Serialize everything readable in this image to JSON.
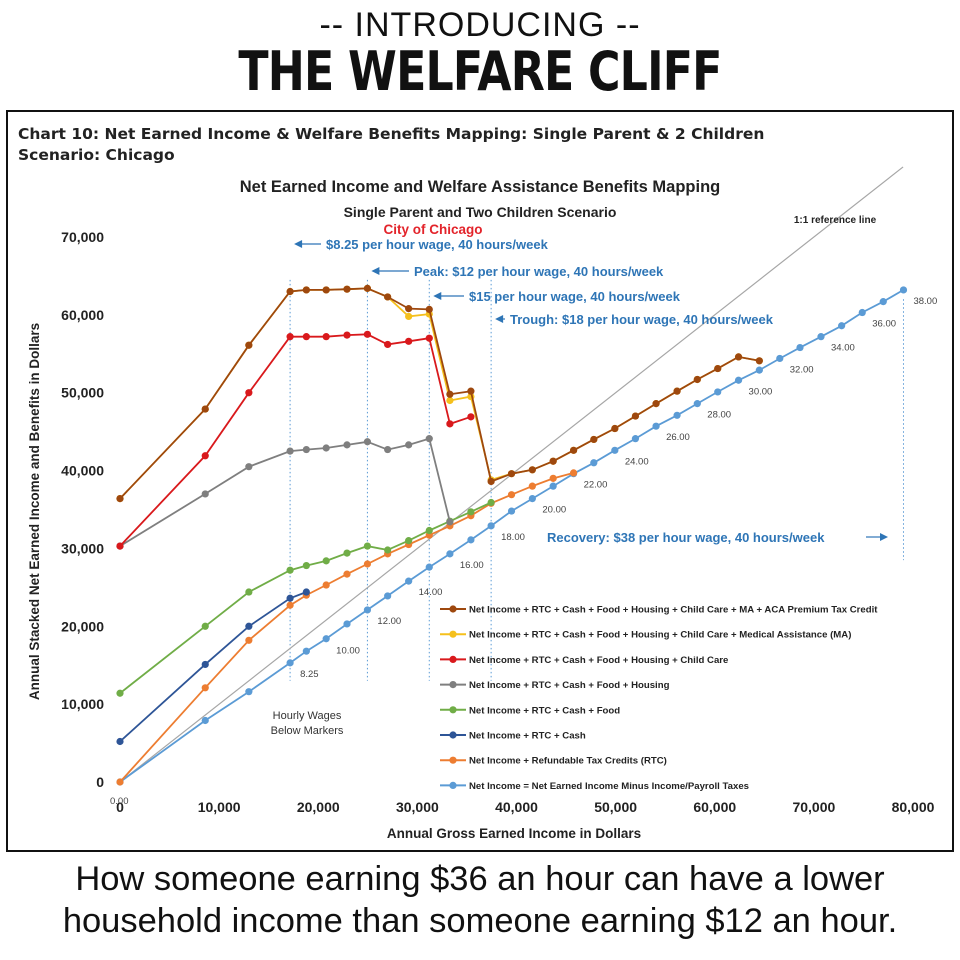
{
  "header": {
    "line1": "-- INTRODUCING --",
    "line2": "THE WELFARE CLIFF"
  },
  "box": {
    "title_line1": "Chart 10: Net Earned Income & Welfare Benefits Mapping:  Single Parent & 2 Children",
    "title_line2": "Scenario: Chicago"
  },
  "footer": {
    "line1": "How someone earning $36 an hour can have a lower",
    "line2": "household income than someone earning $12 an hour."
  },
  "chart_data": {
    "type": "line",
    "title": "Net Earned Income and Welfare Assistance Benefits Mapping",
    "subtitle": "Single Parent and Two Children Scenario",
    "subtitle2": "City of Chicago",
    "xlabel": "Annual Gross Earned Income in Dollars",
    "ylabel": "Annual Stacked Net Earned Income and Benefits in Dollars",
    "xlim": [
      0,
      80000
    ],
    "ylim": [
      0,
      70000
    ],
    "xticks": [
      0,
      10000,
      20000,
      30000,
      40000,
      50000,
      60000,
      70000,
      80000
    ],
    "xtick_labels": [
      "0",
      "10,000",
      "20,000",
      "30,000",
      "40,000",
      "50,000",
      "60,000",
      "70,000",
      "80,000"
    ],
    "yticks": [
      0,
      10000,
      20000,
      30000,
      40000,
      50000,
      60000,
      70000
    ],
    "ytick_labels": [
      "0",
      "10,000",
      "20,000",
      "30,000",
      "40,000",
      "50,000",
      "60,000",
      "70,000"
    ],
    "grid": false,
    "legend_position": "bottom-right",
    "reference_line": {
      "label": "1:1 reference line",
      "from": [
        0,
        0
      ],
      "to": [
        79000,
        79000
      ]
    },
    "vertical_markers": [
      17160,
      24960,
      31200,
      37440,
      79040
    ],
    "annotations": [
      {
        "text": "$8.25 per hour wage, 40 hours/week",
        "x": 17160
      },
      {
        "text": "Peak: $12 per hour wage, 40 hours/week",
        "x": 24960
      },
      {
        "text": "$15 per hour wage, 40 hours/week",
        "x": 31200
      },
      {
        "text": "Trough: $18 per hour wage, 40 hours/week",
        "x": 37440
      },
      {
        "text": "Recovery: $38 per hour wage, 40 hours/week",
        "x": 79040
      }
    ],
    "note": "Hourly Wages Below Markers",
    "wage_labels": [
      {
        "text": "0.00",
        "x": 0,
        "y": 0
      },
      {
        "text": "8.25",
        "x": 17160,
        "y": 15300
      },
      {
        "text": "10.00",
        "x": 20800,
        "y": 18300
      },
      {
        "text": "12.00",
        "x": 24960,
        "y": 22100
      },
      {
        "text": "14.00",
        "x": 29120,
        "y": 25800
      },
      {
        "text": "16.00",
        "x": 33280,
        "y": 29300
      },
      {
        "text": "18.00",
        "x": 37440,
        "y": 32900
      },
      {
        "text": "20.00",
        "x": 41600,
        "y": 36400
      },
      {
        "text": "22.00",
        "x": 45760,
        "y": 39600
      },
      {
        "text": "24.00",
        "x": 49920,
        "y": 42600
      },
      {
        "text": "26.00",
        "x": 54080,
        "y": 45700
      },
      {
        "text": "28.00",
        "x": 58240,
        "y": 48600
      },
      {
        "text": "30.00",
        "x": 62400,
        "y": 51600
      },
      {
        "text": "32.00",
        "x": 66560,
        "y": 54400
      },
      {
        "text": "34.00",
        "x": 70720,
        "y": 57200
      },
      {
        "text": "36.00",
        "x": 74880,
        "y": 60300
      },
      {
        "text": "38.00",
        "x": 79040,
        "y": 63200
      }
    ],
    "series": [
      {
        "name": "Net Income + RTC + Cash + Food + Housing + Child Care + MA + ACA Premium Tax Credit",
        "color": "#9e480e",
        "x": [
          0,
          8600,
          13000,
          17160,
          18800,
          20800,
          22900,
          24960,
          27000,
          29120,
          31200,
          33280,
          35400,
          37440,
          39500,
          41600,
          43700,
          45760,
          47800,
          49920,
          52000,
          54080,
          56200,
          58240,
          60300,
          62400,
          64500
        ],
        "y": [
          36400,
          47900,
          56100,
          63000,
          63200,
          63200,
          63300,
          63400,
          62300,
          60800,
          60700,
          49800,
          50200,
          38600,
          39600,
          40100,
          41200,
          42600,
          44000,
          45400,
          47000,
          48600,
          50200,
          51700,
          53100,
          54600,
          54100
        ]
      },
      {
        "name": "Net Income + RTC + Cash + Food + Housing + Child Care + Medical Assistance (MA)",
        "color": "#f5c01c",
        "x": [
          0,
          8600,
          13000,
          17160,
          18800,
          20800,
          22900,
          24960,
          27000,
          29120,
          31200,
          33280,
          35400,
          37440,
          39500,
          41600,
          43700,
          45760,
          47800,
          49920,
          52000,
          54080,
          56200,
          58240,
          60300,
          62400,
          64500
        ],
        "y": [
          36400,
          47900,
          56100,
          63000,
          63200,
          63200,
          63300,
          63400,
          62300,
          59800,
          60100,
          49000,
          49500,
          38800,
          39600,
          40100,
          41200,
          42600,
          44000,
          45400,
          47000,
          48600,
          50200,
          51700,
          53100,
          54600,
          54100
        ]
      },
      {
        "name": "Net Income + RTC + Cash + Food + Housing + Child Care",
        "color": "#d9191c",
        "x": [
          0,
          8600,
          13000,
          17160,
          18800,
          20800,
          22900,
          24960,
          27000,
          29120,
          31200,
          33280,
          35400
        ],
        "y": [
          30300,
          41900,
          50000,
          57200,
          57200,
          57200,
          57400,
          57500,
          56200,
          56600,
          57000,
          46000,
          46900
        ]
      },
      {
        "name": "Net Income + RTC + Cash + Food + Housing",
        "color": "#7f7f7f",
        "x": [
          0,
          8600,
          13000,
          17160,
          18800,
          20800,
          22900,
          24960,
          27000,
          29120,
          31200,
          33280
        ],
        "y": [
          30300,
          37000,
          40500,
          42500,
          42700,
          42900,
          43300,
          43700,
          42700,
          43300,
          44100,
          33400
        ]
      },
      {
        "name": "Net Income + RTC + Cash + Food",
        "color": "#70ad47",
        "x": [
          0,
          8600,
          13000,
          17160,
          18800,
          20800,
          22900,
          24960,
          27000,
          29120,
          31200,
          33280,
          35400,
          37440
        ],
        "y": [
          11400,
          20000,
          24400,
          27200,
          27800,
          28400,
          29400,
          30300,
          29800,
          31000,
          32300,
          33500,
          34700,
          35900
        ]
      },
      {
        "name": "Net Income + RTC + Cash",
        "color": "#2e5597",
        "x": [
          0,
          8600,
          13000,
          17160,
          18800
        ],
        "y": [
          5200,
          15100,
          20000,
          23600,
          24400
        ]
      },
      {
        "name": "Net Income + Refundable Tax Credits (RTC)",
        "color": "#ed7d31",
        "x": [
          0,
          8600,
          13000,
          17160,
          18800,
          20800,
          22900,
          24960,
          27000,
          29120,
          31200,
          33280,
          35400,
          37440,
          39500,
          41600,
          43700,
          45760
        ],
        "y": [
          0,
          12100,
          18200,
          22700,
          24000,
          25300,
          26700,
          28000,
          29300,
          30500,
          31700,
          32900,
          34200,
          35800,
          36900,
          38000,
          39000,
          39700
        ]
      },
      {
        "name": "Net Income = Net Earned Income Minus Income/Payroll Taxes",
        "color": "#5b9bd5",
        "x": [
          0,
          8600,
          13000,
          17160,
          18800,
          20800,
          22900,
          24960,
          27000,
          29120,
          31200,
          33280,
          35400,
          37440,
          39500,
          41600,
          43700,
          45760,
          47800,
          49920,
          52000,
          54080,
          56200,
          58240,
          60300,
          62400,
          64500,
          66560,
          68600,
          70720,
          72800,
          74880,
          77000,
          79040
        ],
        "y": [
          0,
          7900,
          11600,
          15300,
          16800,
          18400,
          20300,
          22100,
          23900,
          25800,
          27600,
          29300,
          31100,
          32900,
          34800,
          36400,
          38000,
          39600,
          41000,
          42600,
          44100,
          45700,
          47100,
          48600,
          50100,
          51600,
          52900,
          54400,
          55800,
          57200,
          58600,
          60300,
          61700,
          63200
        ]
      }
    ]
  }
}
